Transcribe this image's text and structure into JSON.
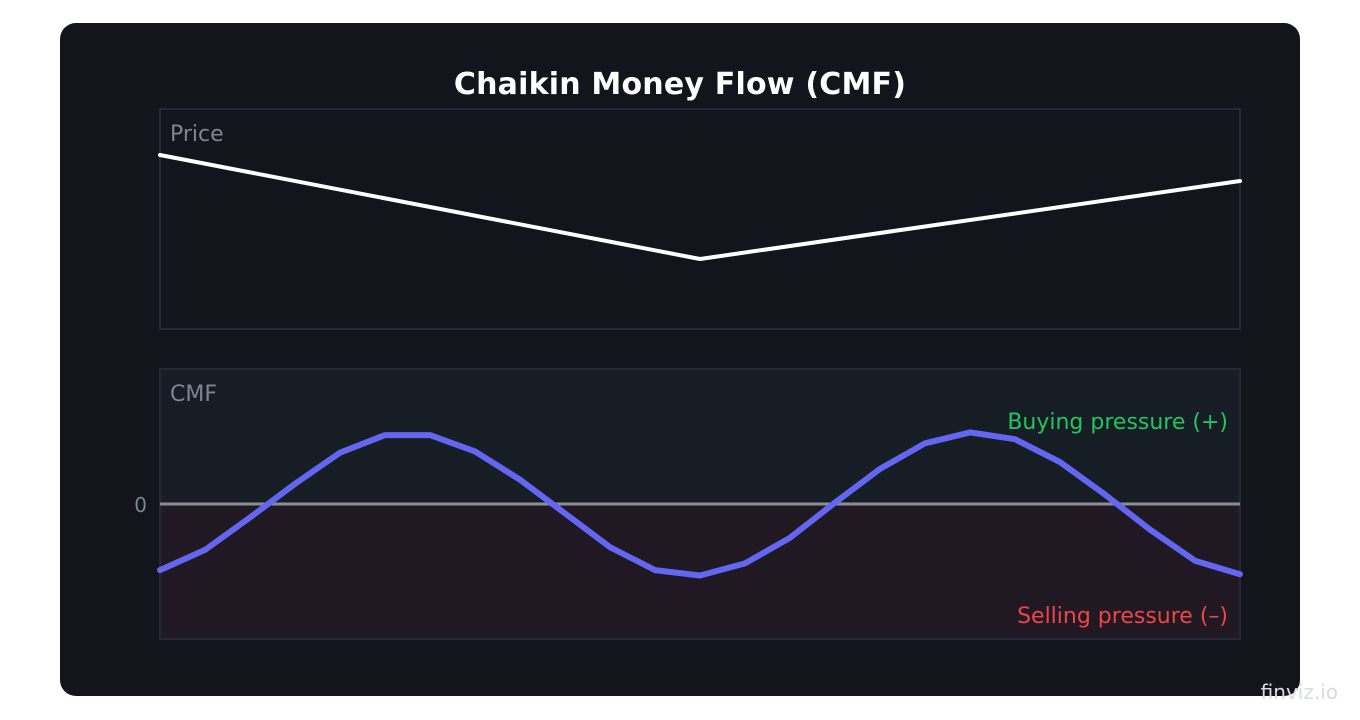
{
  "title": "Chaikin Money Flow (CMF)",
  "watermark": "finviz.io",
  "colors": {
    "card_bg": "#13141c",
    "panel_border": "#262837",
    "price_line": "#ffffff",
    "cmf_line": "#6366f1",
    "zero_line": "#8a8e99",
    "buy_zone": "#171d25",
    "sell_zone": "#201823",
    "buy_text": "#22c55e",
    "sell_text": "#ef4444",
    "label_text": "#7d8494"
  },
  "chart_data": [
    {
      "type": "line",
      "panel": "price",
      "label": "Price",
      "x": [
        0,
        12,
        24
      ],
      "series": [
        {
          "values": [
            82,
            30,
            69
          ]
        }
      ],
      "ylim": [
        0,
        100
      ],
      "xlim": [
        0,
        24
      ]
    },
    {
      "type": "line",
      "panel": "cmf",
      "label": "CMF",
      "zero_label": "0",
      "annotations": {
        "buying": "Buying pressure (+)",
        "selling": "Selling pressure (–)"
      },
      "x": [
        0,
        1,
        2,
        3,
        4,
        5,
        6,
        7,
        8,
        9,
        10,
        11,
        12,
        13,
        14,
        15,
        16,
        17,
        18,
        19,
        20,
        21,
        22,
        23,
        24
      ],
      "series": [
        {
          "values": [
            -0.49,
            -0.34,
            -0.1,
            0.15,
            0.38,
            0.51,
            0.51,
            0.39,
            0.18,
            -0.07,
            -0.32,
            -0.49,
            -0.53,
            -0.44,
            -0.25,
            0.01,
            0.26,
            0.45,
            0.53,
            0.48,
            0.31,
            0.07,
            -0.19,
            -0.42,
            -0.52
          ]
        }
      ],
      "ylim": [
        -1,
        1
      ],
      "xlim": [
        0,
        24
      ]
    }
  ]
}
